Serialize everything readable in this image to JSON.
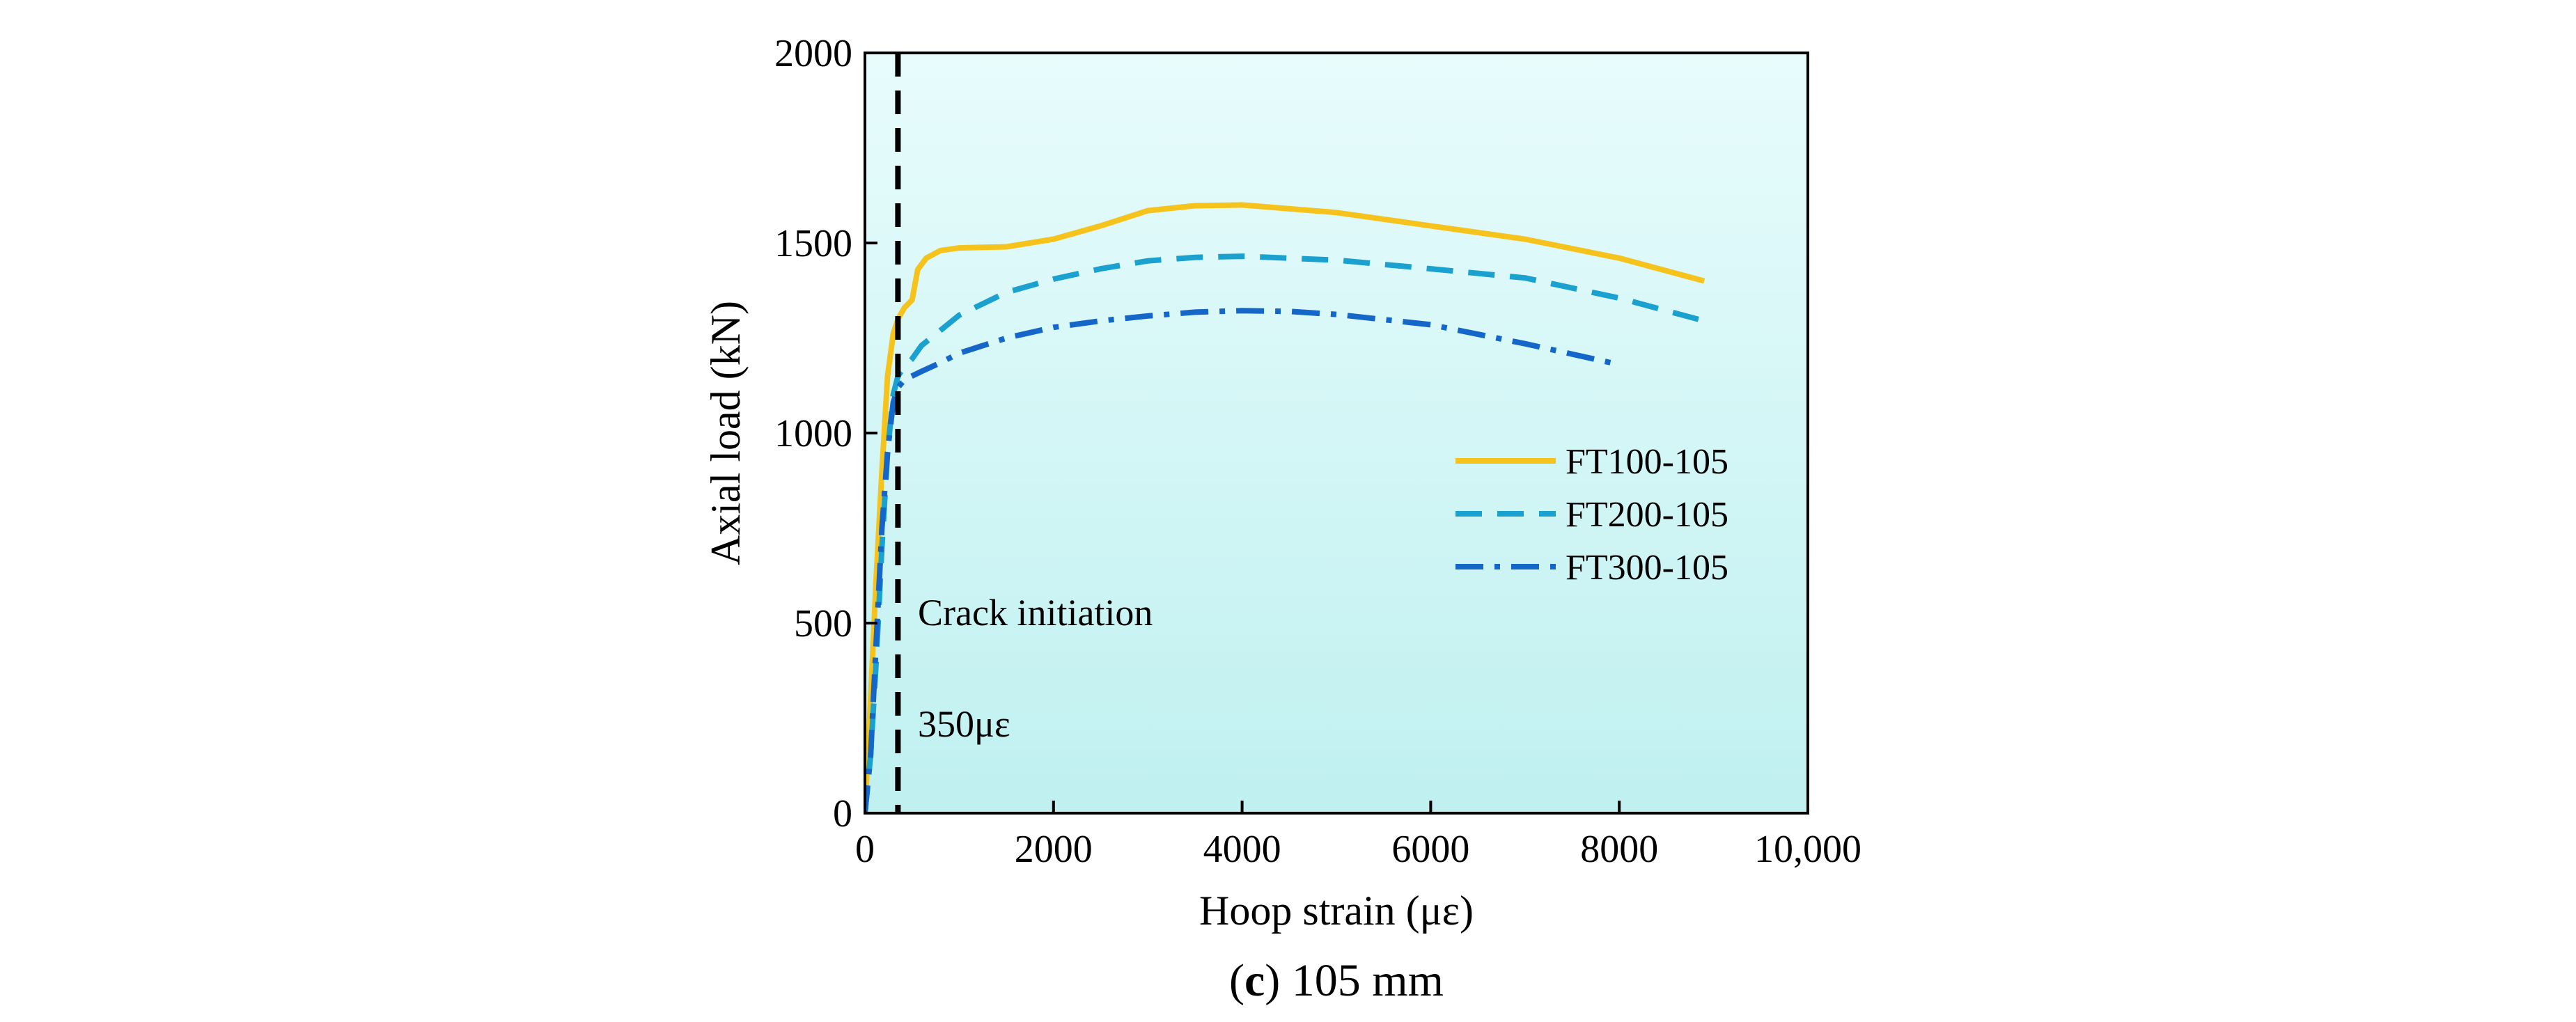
{
  "chart_data": {
    "type": "line",
    "title": "",
    "xlabel": "Hoop strain (με)",
    "ylabel": "Axial load (kN)",
    "xlim": [
      0,
      10000
    ],
    "ylim": [
      0,
      2000
    ],
    "x_ticks": [
      0,
      2000,
      4000,
      6000,
      8000,
      10000
    ],
    "x_tick_labels": [
      "0",
      "2000",
      "4000",
      "6000",
      "8000",
      "10,000"
    ],
    "y_ticks": [
      0,
      500,
      1000,
      1500,
      2000
    ],
    "y_tick_labels": [
      "0",
      "500",
      "1000",
      "1500",
      "2000"
    ],
    "grid": false,
    "legend_position": "center-right",
    "background_gradient": [
      "#e8fcfc",
      "#c0f0f0"
    ],
    "series": [
      {
        "name": "FT100-105",
        "color": "#f5c31c",
        "style": "solid",
        "x": [
          0,
          60,
          120,
          180,
          240,
          300,
          350,
          420,
          500,
          560,
          650,
          800,
          1000,
          1500,
          2000,
          2500,
          3000,
          3500,
          4000,
          5000,
          6000,
          7000,
          8000,
          8900
        ],
        "y": [
          0,
          300,
          620,
          900,
          1150,
          1260,
          1300,
          1330,
          1350,
          1430,
          1460,
          1480,
          1487,
          1490,
          1510,
          1545,
          1585,
          1598,
          1600,
          1580,
          1545,
          1510,
          1460,
          1400
        ]
      },
      {
        "name": "FT200-105",
        "color": "#1aa1cf",
        "style": "dashed",
        "x": [
          0,
          60,
          120,
          180,
          240,
          300,
          350,
          420,
          500,
          600,
          800,
          1000,
          1500,
          2000,
          2500,
          3000,
          3500,
          4000,
          5000,
          6000,
          7000,
          8000,
          8900
        ],
        "y": [
          0,
          150,
          400,
          700,
          950,
          1100,
          1150,
          1175,
          1195,
          1230,
          1270,
          1310,
          1370,
          1405,
          1432,
          1453,
          1462,
          1465,
          1455,
          1432,
          1408,
          1355,
          1295
        ]
      },
      {
        "name": "FT300-105",
        "color": "#1566c9",
        "style": "dashdot",
        "x": [
          0,
          60,
          120,
          180,
          240,
          300,
          350,
          420,
          500,
          600,
          800,
          1000,
          1500,
          2000,
          2500,
          3000,
          3500,
          4000,
          4500,
          5000,
          6000,
          7000,
          8000
        ],
        "y": [
          0,
          150,
          450,
          750,
          950,
          1080,
          1120,
          1140,
          1150,
          1162,
          1185,
          1210,
          1250,
          1278,
          1295,
          1308,
          1318,
          1322,
          1320,
          1312,
          1285,
          1235,
          1180
        ]
      }
    ],
    "reference_line": {
      "x": 350,
      "style": "dashed",
      "color": "#000000",
      "labels": [
        "Crack initiation",
        "350με"
      ]
    }
  },
  "caption": {
    "letter": "c",
    "text": " 105 mm"
  }
}
